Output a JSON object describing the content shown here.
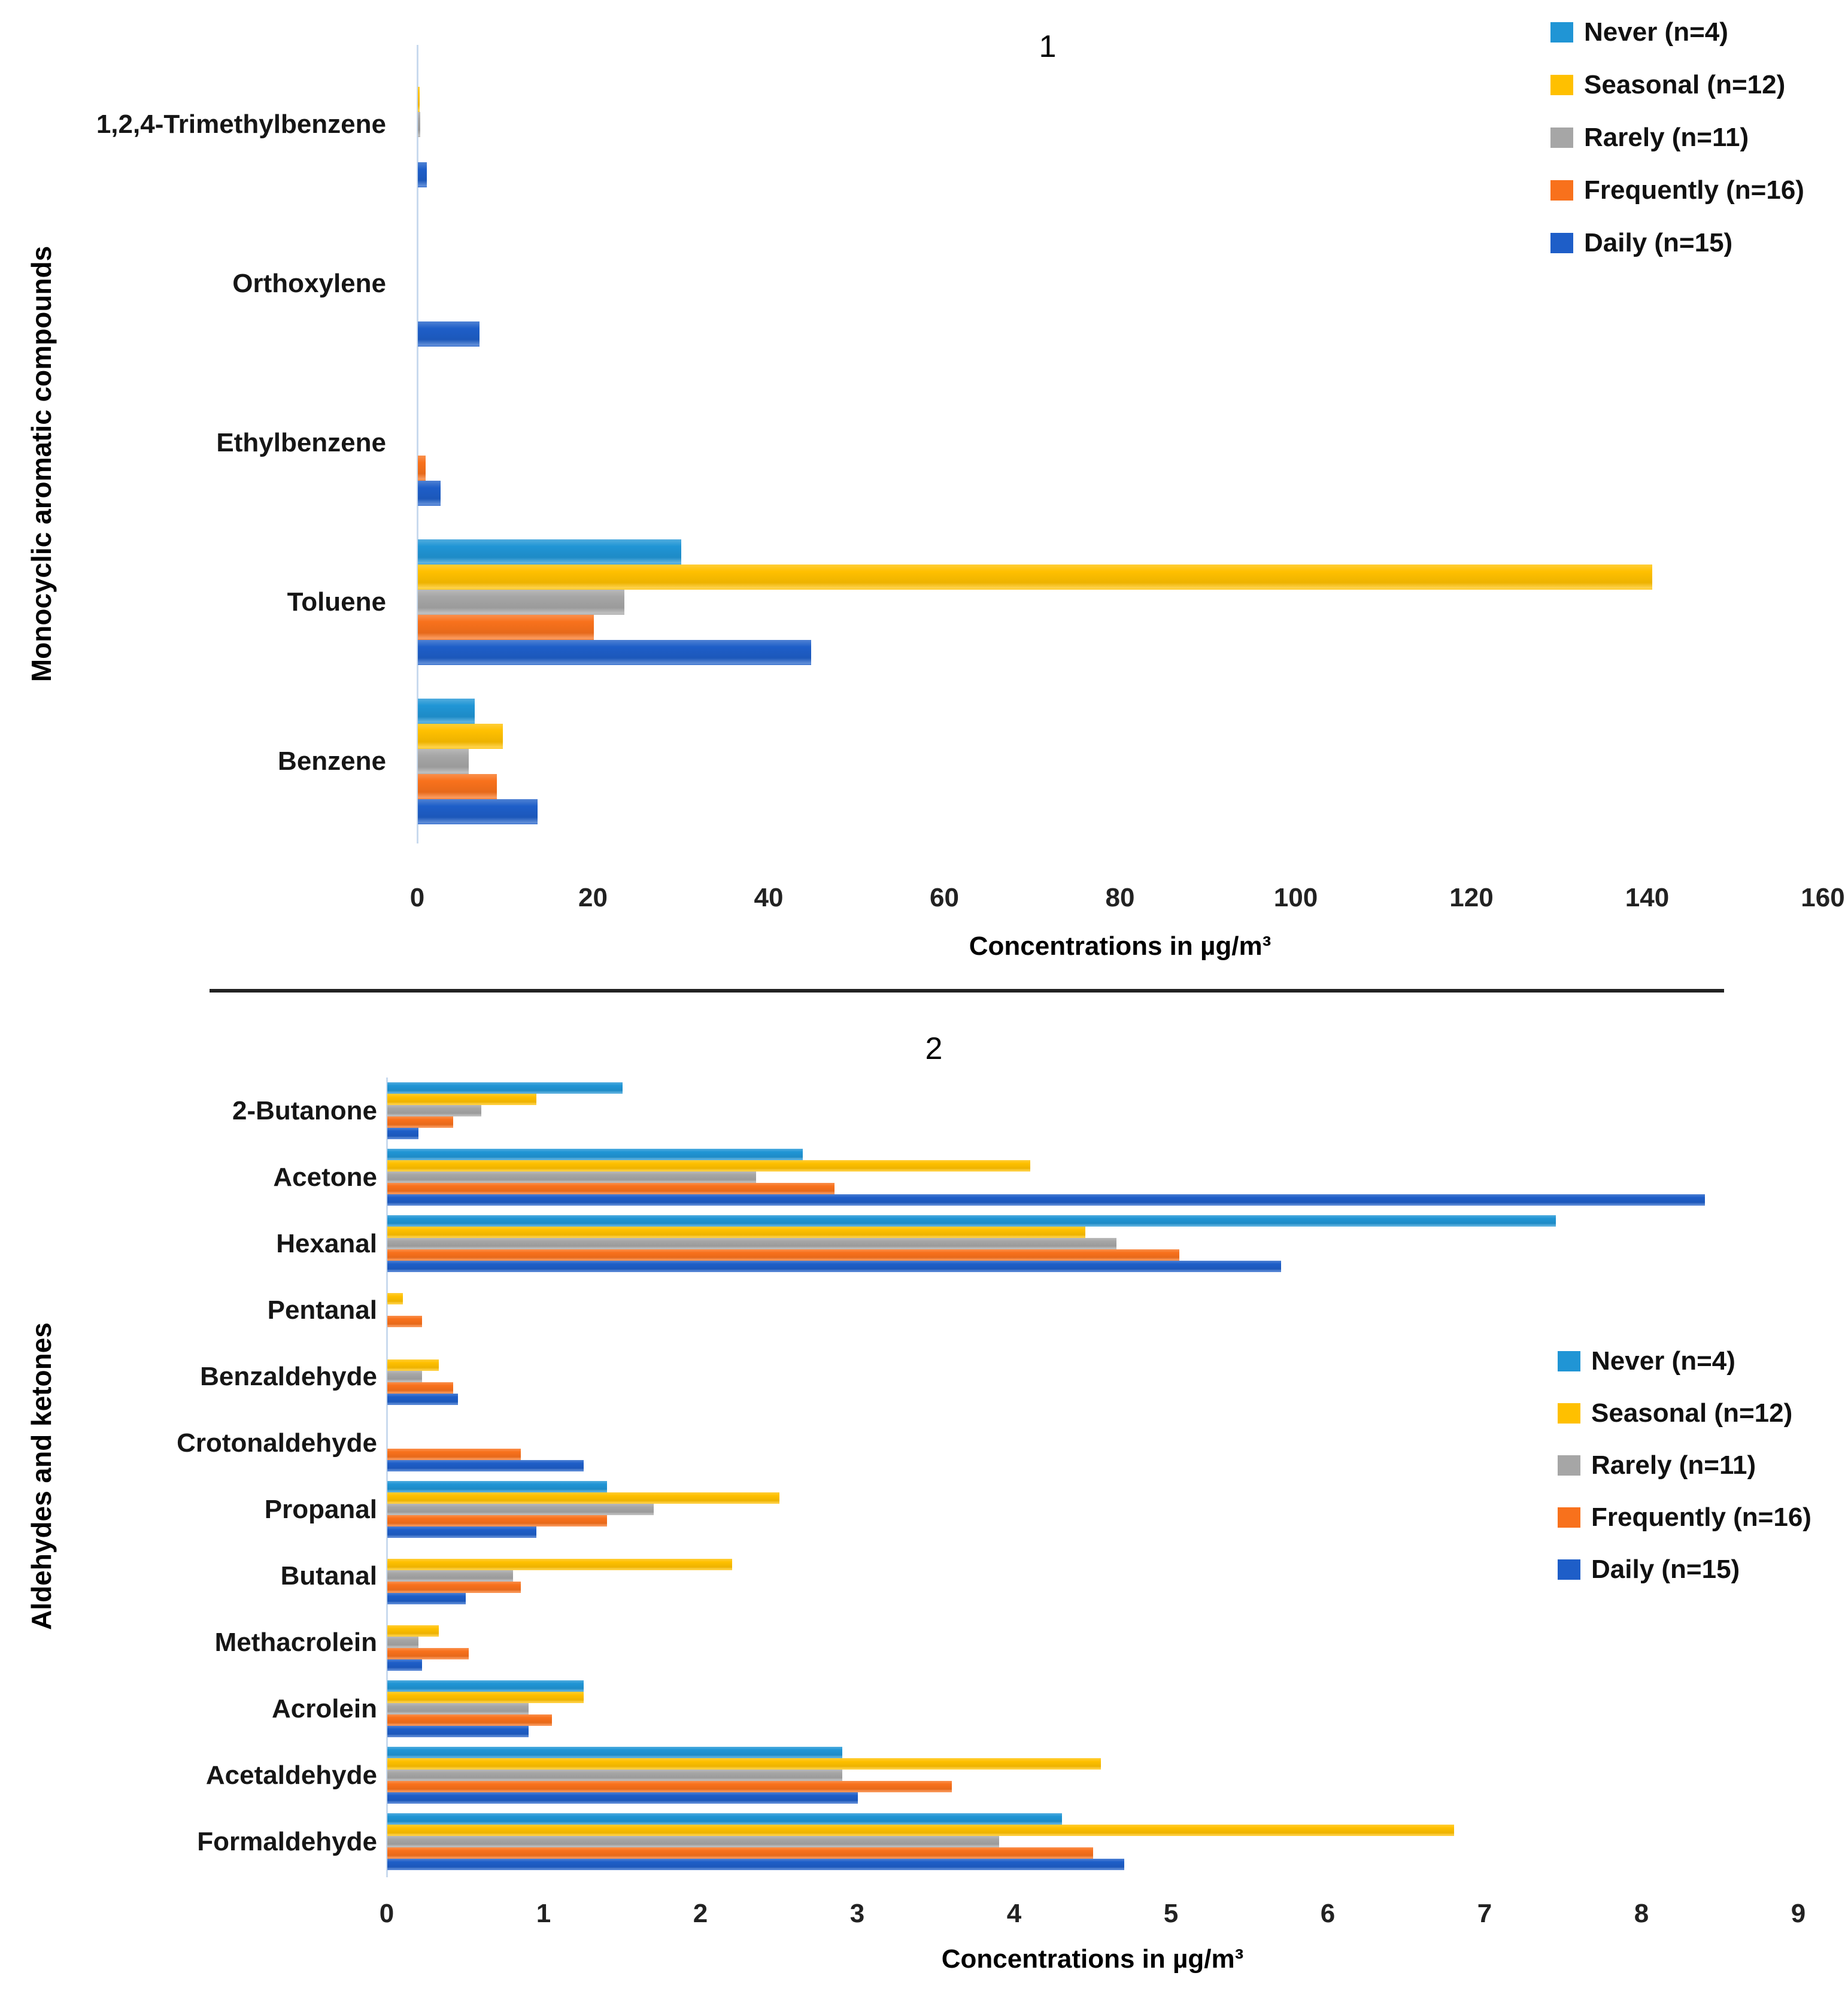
{
  "legend": {
    "items": [
      {
        "label": "Never (n=4)",
        "color": "#2095D5"
      },
      {
        "label": "Seasonal (n=12)",
        "color": "#FFC000"
      },
      {
        "label": "Rarely (n=11)",
        "color": "#A6A6A6"
      },
      {
        "label": "Frequently (n=16)",
        "color": "#F8711C"
      },
      {
        "label": "Daily (n=15)",
        "color": "#1E5EC8"
      }
    ]
  },
  "chart_data": [
    {
      "type": "bar",
      "orientation": "horizontal",
      "panel_label": "1",
      "category_axis_label": "Monocyclic aromatic compounds",
      "value_axis_label": "Concentrations in µg/m³",
      "xlim": [
        0,
        160
      ],
      "xticks": [
        0,
        20,
        40,
        60,
        80,
        100,
        120,
        140,
        160
      ],
      "grid": false,
      "legend_position": "top-right",
      "categories": [
        "1,2,4-Trimethylbenzene",
        "Orthoxylene",
        "Ethylbenzene",
        "Toluene",
        "Benzene"
      ],
      "series": [
        {
          "name": "Never (n=4)",
          "color": "#2095D5",
          "values": [
            0,
            0,
            0,
            30,
            6.5
          ]
        },
        {
          "name": "Seasonal (n=12)",
          "color": "#FFC000",
          "values": [
            0.2,
            0,
            0,
            140.5,
            9.7
          ]
        },
        {
          "name": "Rarely (n=11)",
          "color": "#A6A6A6",
          "values": [
            0.3,
            0,
            0,
            23.5,
            5.8
          ]
        },
        {
          "name": "Frequently (n=16)",
          "color": "#F8711C",
          "values": [
            0,
            0,
            0.9,
            20,
            9.0
          ]
        },
        {
          "name": "Daily (n=15)",
          "color": "#1E5EC8",
          "values": [
            1.0,
            7,
            2.6,
            44.8,
            13.6
          ]
        }
      ]
    },
    {
      "type": "bar",
      "orientation": "horizontal",
      "panel_label": "2",
      "category_axis_label": "Aldehydes and ketones",
      "value_axis_label": "Concentrations in µg/m³",
      "xlim": [
        0,
        9
      ],
      "xticks": [
        0,
        1,
        2,
        3,
        4,
        5,
        6,
        7,
        8,
        9
      ],
      "grid": false,
      "legend_position": "middle-right",
      "categories": [
        "2-Butanone",
        "Acetone",
        "Hexanal",
        "Pentanal",
        "Benzaldehyde",
        "Crotonaldehyde",
        "Propanal",
        "Butanal",
        "Methacrolein",
        "Acrolein",
        "Acetaldehyde",
        "Formaldehyde"
      ],
      "series": [
        {
          "name": "Never (n=4)",
          "color": "#2095D5",
          "values": [
            1.5,
            2.65,
            7.45,
            0,
            0,
            0,
            1.4,
            0,
            0,
            1.25,
            2.9,
            4.3
          ]
        },
        {
          "name": "Seasonal (n=12)",
          "color": "#FFC000",
          "values": [
            0.95,
            4.1,
            4.45,
            0.1,
            0.33,
            0,
            2.5,
            2.2,
            0.33,
            1.25,
            4.55,
            6.8
          ]
        },
        {
          "name": "Rarely (n=11)",
          "color": "#A6A6A6",
          "values": [
            0.6,
            2.35,
            4.65,
            0,
            0.22,
            0,
            1.7,
            0.8,
            0.2,
            0.9,
            2.9,
            3.9
          ]
        },
        {
          "name": "Frequently (n=16)",
          "color": "#F8711C",
          "values": [
            0.42,
            2.85,
            5.05,
            0.22,
            0.42,
            0.85,
            1.4,
            0.85,
            0.52,
            1.05,
            3.6,
            4.5
          ]
        },
        {
          "name": "Daily (n=15)",
          "color": "#1E5EC8",
          "values": [
            0.2,
            8.4,
            5.7,
            0,
            0.45,
            1.25,
            0.95,
            0.5,
            0.22,
            0.9,
            3.0,
            4.7
          ]
        }
      ]
    }
  ]
}
